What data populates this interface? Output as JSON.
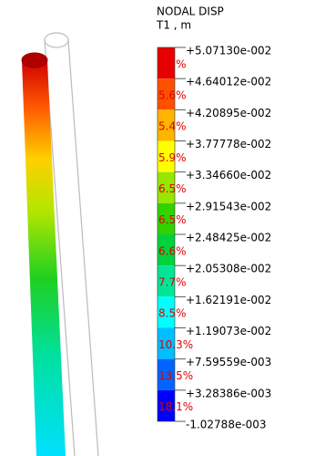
{
  "legend": {
    "title": "NODAL DISP",
    "subtitle": "T1 , m",
    "levels": [
      "+5.07130e-002",
      "+4.64012e-002",
      "+4.20895e-002",
      "+3.77778e-002",
      "+3.34660e-002",
      "+2.91543e-002",
      "+2.48425e-002",
      "+2.05308e-002",
      "+1.62191e-002",
      "+1.19073e-002",
      "+7.59559e-003",
      "+3.28386e-003",
      "-1.02788e-003"
    ],
    "bands": [
      {
        "color": "#e60000",
        "percent": "5.5%"
      },
      {
        "color": "#ff5000",
        "percent": "5.6%"
      },
      {
        "color": "#ffb400",
        "percent": "5.4%"
      },
      {
        "color": "#ffff00",
        "percent": "5.9%"
      },
      {
        "color": "#96e600",
        "percent": "6.5%"
      },
      {
        "color": "#32d200",
        "percent": "6.5%"
      },
      {
        "color": "#00d23c",
        "percent": "6.6%"
      },
      {
        "color": "#00e696",
        "percent": "7.7%"
      },
      {
        "color": "#00ffff",
        "percent": "8.5%"
      },
      {
        "color": "#00beff",
        "percent": "10.3%"
      },
      {
        "color": "#0064ff",
        "percent": "13.5%"
      },
      {
        "color": "#0000ff",
        "percent": "18.1%"
      }
    ]
  }
}
